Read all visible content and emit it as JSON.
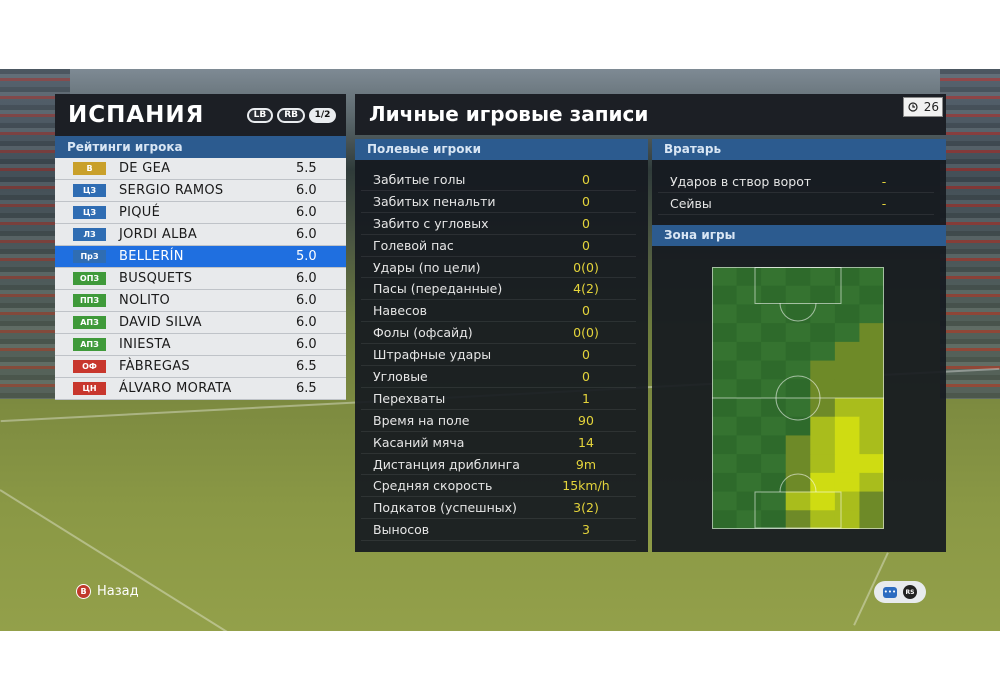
{
  "team": {
    "name": "ИСПАНИЯ",
    "lb": "LB",
    "rb": "RB",
    "page": "1/2"
  },
  "ratings_title": "Рейтинги игрока",
  "players": [
    {
      "pos": "В",
      "pos_color": "#c9a02a",
      "name": "DE GEA",
      "rating": "5.5"
    },
    {
      "pos": "ЦЗ",
      "pos_color": "#2f6db3",
      "name": "SERGIO RAMOS",
      "rating": "6.0"
    },
    {
      "pos": "ЦЗ",
      "pos_color": "#2f6db3",
      "name": "PIQUÉ",
      "rating": "6.0"
    },
    {
      "pos": "ЛЗ",
      "pos_color": "#2f6db3",
      "name": "JORDI ALBA",
      "rating": "6.0"
    },
    {
      "pos": "ПрЗ",
      "pos_color": "#2f6db3",
      "name": "BELLERÍN",
      "rating": "5.0"
    },
    {
      "pos": "ОПЗ",
      "pos_color": "#3f9a3a",
      "name": "BUSQUETS",
      "rating": "6.0"
    },
    {
      "pos": "ППЗ",
      "pos_color": "#3f9a3a",
      "name": "NOLITO",
      "rating": "6.0"
    },
    {
      "pos": "АПЗ",
      "pos_color": "#3f9a3a",
      "name": "DAVID SILVA",
      "rating": "6.0"
    },
    {
      "pos": "АПЗ",
      "pos_color": "#3f9a3a",
      "name": "INIESTA",
      "rating": "6.0"
    },
    {
      "pos": "ОФ",
      "pos_color": "#c8372d",
      "name": "FÀBREGAS",
      "rating": "6.5"
    },
    {
      "pos": "ЦН",
      "pos_color": "#c8372d",
      "name": "ÁLVARO MORATA",
      "rating": "6.5"
    }
  ],
  "selected_index": 4,
  "page_title": "Личные игровые записи",
  "timer": "26",
  "field_title": "Полевые игроки",
  "field_stats": [
    {
      "label": "Забитые голы",
      "value": "0"
    },
    {
      "label": "Забитых пенальти",
      "value": "0"
    },
    {
      "label": "Забито с угловых",
      "value": "0"
    },
    {
      "label": "Голевой пас",
      "value": "0"
    },
    {
      "label": "Удары (по цели)",
      "value": "0(0)"
    },
    {
      "label": "Пасы (переданные)",
      "value": "4(2)"
    },
    {
      "label": "Навесов",
      "value": "0"
    },
    {
      "label": "Фолы (офсайд)",
      "value": "0(0)"
    },
    {
      "label": "Штрафные удары",
      "value": "0"
    },
    {
      "label": "Угловые",
      "value": "0"
    },
    {
      "label": "Перехваты",
      "value": "1"
    },
    {
      "label": "Время на поле",
      "value": "90"
    },
    {
      "label": "Касаний мяча",
      "value": "14"
    },
    {
      "label": "Дистанция дриблинга",
      "value": "9m"
    },
    {
      "label": "Средняя скорость",
      "value": "15km/h"
    },
    {
      "label": "Подкатов (успешных)",
      "value": "3(2)"
    },
    {
      "label": "Выносов",
      "value": "3"
    }
  ],
  "gk_title": "Вратарь",
  "gk_stats": [
    {
      "label": "Ударов в створ ворот",
      "value": "-"
    },
    {
      "label": "Сейвы",
      "value": "-"
    }
  ],
  "zone_title": "Зона игры",
  "heatmap_hot": [
    [
      0,
      0,
      0,
      0,
      0,
      0,
      0
    ],
    [
      0,
      0,
      0,
      0,
      0,
      0,
      0
    ],
    [
      0,
      0,
      0,
      0,
      0,
      0,
      0
    ],
    [
      0,
      0,
      0,
      0,
      0,
      0,
      1
    ],
    [
      0,
      0,
      0,
      0,
      0,
      1,
      1
    ],
    [
      0,
      0,
      0,
      0,
      1,
      1,
      1
    ],
    [
      0,
      0,
      0,
      0,
      1,
      1,
      1
    ],
    [
      0,
      0,
      0,
      0,
      1,
      2,
      2
    ],
    [
      0,
      0,
      0,
      0,
      2,
      3,
      2
    ],
    [
      0,
      0,
      0,
      1,
      2,
      3,
      2
    ],
    [
      0,
      0,
      0,
      1,
      2,
      3,
      3
    ],
    [
      0,
      0,
      0,
      1,
      3,
      3,
      2
    ],
    [
      0,
      0,
      0,
      2,
      3,
      2,
      1
    ],
    [
      0,
      0,
      0,
      1,
      2,
      2,
      1
    ]
  ],
  "footer": {
    "back_button": "B",
    "back_label": "Назад",
    "rs_label": "RS"
  },
  "colors": {
    "panel_blue": "#2c5b8f",
    "selected": "#1f6fe0",
    "value_yellow": "#e4d43b"
  }
}
